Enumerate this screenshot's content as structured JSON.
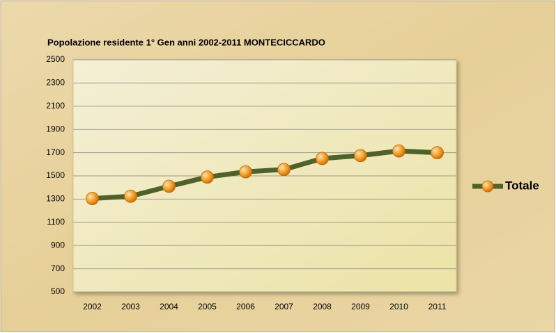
{
  "chart_data": {
    "type": "line",
    "title": "Popolazione residente 1° Gen  anni  2002-2011  MONTECICCARDO",
    "categories": [
      "2002",
      "2003",
      "2004",
      "2005",
      "2006",
      "2007",
      "2008",
      "2009",
      "2010",
      "2011"
    ],
    "series": [
      {
        "name": "Totale",
        "color": "#4f6228",
        "marker_color": "#f39a1f",
        "values": [
          1305,
          1325,
          1410,
          1490,
          1535,
          1555,
          1650,
          1675,
          1715,
          1700
        ]
      }
    ],
    "ylim": [
      500,
      2500
    ],
    "yticks": [
      500,
      700,
      900,
      1100,
      1300,
      1500,
      1700,
      1900,
      2100,
      2300,
      2500
    ],
    "grid": true,
    "legend": "right"
  }
}
